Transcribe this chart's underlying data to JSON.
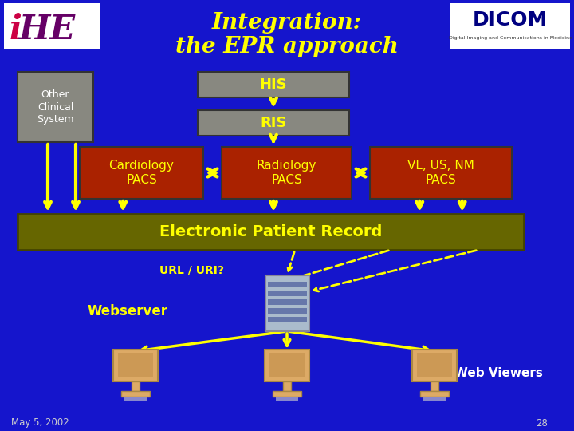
{
  "bg_color": "#1515CC",
  "title_line1": "Integration:",
  "title_line2": "the EPR approach",
  "title_color": "#FFFF00",
  "title_fontsize": 20,
  "box_his_ris_color": "#888880",
  "box_his_ris_text_color": "#FFFF00",
  "box_pacs_color": "#AA2200",
  "box_pacs_text_color": "#FFFF00",
  "box_other_color": "#888880",
  "box_other_text_color": "#FFFFFF",
  "epr_bar_color": "#666600",
  "epr_text_color": "#FFFF00",
  "arrow_color": "#FFFF00",
  "url_text_color": "#FFFF00",
  "webserver_text_color": "#FFFF00",
  "webviewers_text_color": "#FFFFFF",
  "footer_text_color": "#CCCCCC",
  "footer_date": "May 5, 2002",
  "footer_page": "28",
  "ihe_bg": "#FFFFFF",
  "dicom_bg": "#FFFFFF",
  "computer_color": "#DDAA66",
  "server_color": "#AAAACC"
}
